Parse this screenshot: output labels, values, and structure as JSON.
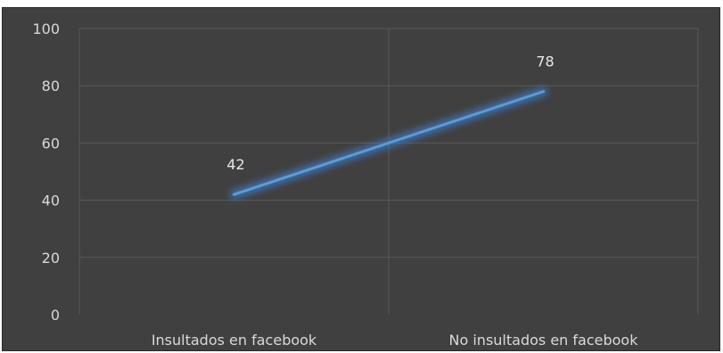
{
  "chart_data": {
    "type": "line",
    "categories": [
      "Insultados en facebook",
      "No insultados en facebook"
    ],
    "series": [
      {
        "values": [
          42,
          78
        ],
        "data_labels": [
          "42",
          "78"
        ]
      }
    ],
    "title": "",
    "xlabel": "",
    "ylabel": "",
    "ylim": [
      0,
      100
    ],
    "yticks": [
      {
        "value": 0,
        "label": "0"
      },
      {
        "value": 20,
        "label": "20"
      },
      {
        "value": 40,
        "label": "40"
      },
      {
        "value": 60,
        "label": "60"
      },
      {
        "value": 80,
        "label": "80"
      },
      {
        "value": 100,
        "label": "100"
      }
    ],
    "grid": true,
    "legend": "none"
  },
  "colors": {
    "background": "#404040",
    "gridline": "#595959",
    "line": "#5b9bd5",
    "glow": "#3d7fd1",
    "text": "#d9d9d9"
  }
}
